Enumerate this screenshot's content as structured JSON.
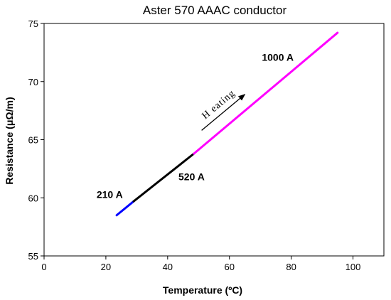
{
  "chart_data": {
    "type": "line",
    "title": "Aster 570 AAAC conductor",
    "xlabel": "Temperature (ºC)",
    "ylabel": "Resistance (μΩ/m)",
    "xlim": [
      0,
      110
    ],
    "ylim": [
      55,
      75
    ],
    "xticks": [
      0,
      20,
      40,
      60,
      80,
      100
    ],
    "yticks": [
      55,
      60,
      65,
      70,
      75
    ],
    "grid": false,
    "series": [
      {
        "name": "210 A",
        "color": "#0000ff",
        "x": [
          23.5,
          29.0
        ],
        "y": [
          58.5,
          59.7
        ]
      },
      {
        "name": "520 A",
        "color": "#000000",
        "x": [
          29.0,
          48.5
        ],
        "y": [
          59.7,
          63.8
        ]
      },
      {
        "name": "1000 A",
        "color": "#ff00ff",
        "x": [
          48.5,
          95.0
        ],
        "y": [
          63.8,
          74.2
        ]
      }
    ],
    "annotations": [
      {
        "text": "210 A",
        "x": 17,
        "y": 60.0
      },
      {
        "text": "520 A",
        "x": 43.5,
        "y": 61.5
      },
      {
        "text": "1000 A",
        "x": 70.5,
        "y": 71.8
      },
      {
        "text": "H eating",
        "arrow": {
          "from": [
            51,
            65.8
          ],
          "to": [
            65,
            68.9
          ]
        }
      }
    ]
  }
}
